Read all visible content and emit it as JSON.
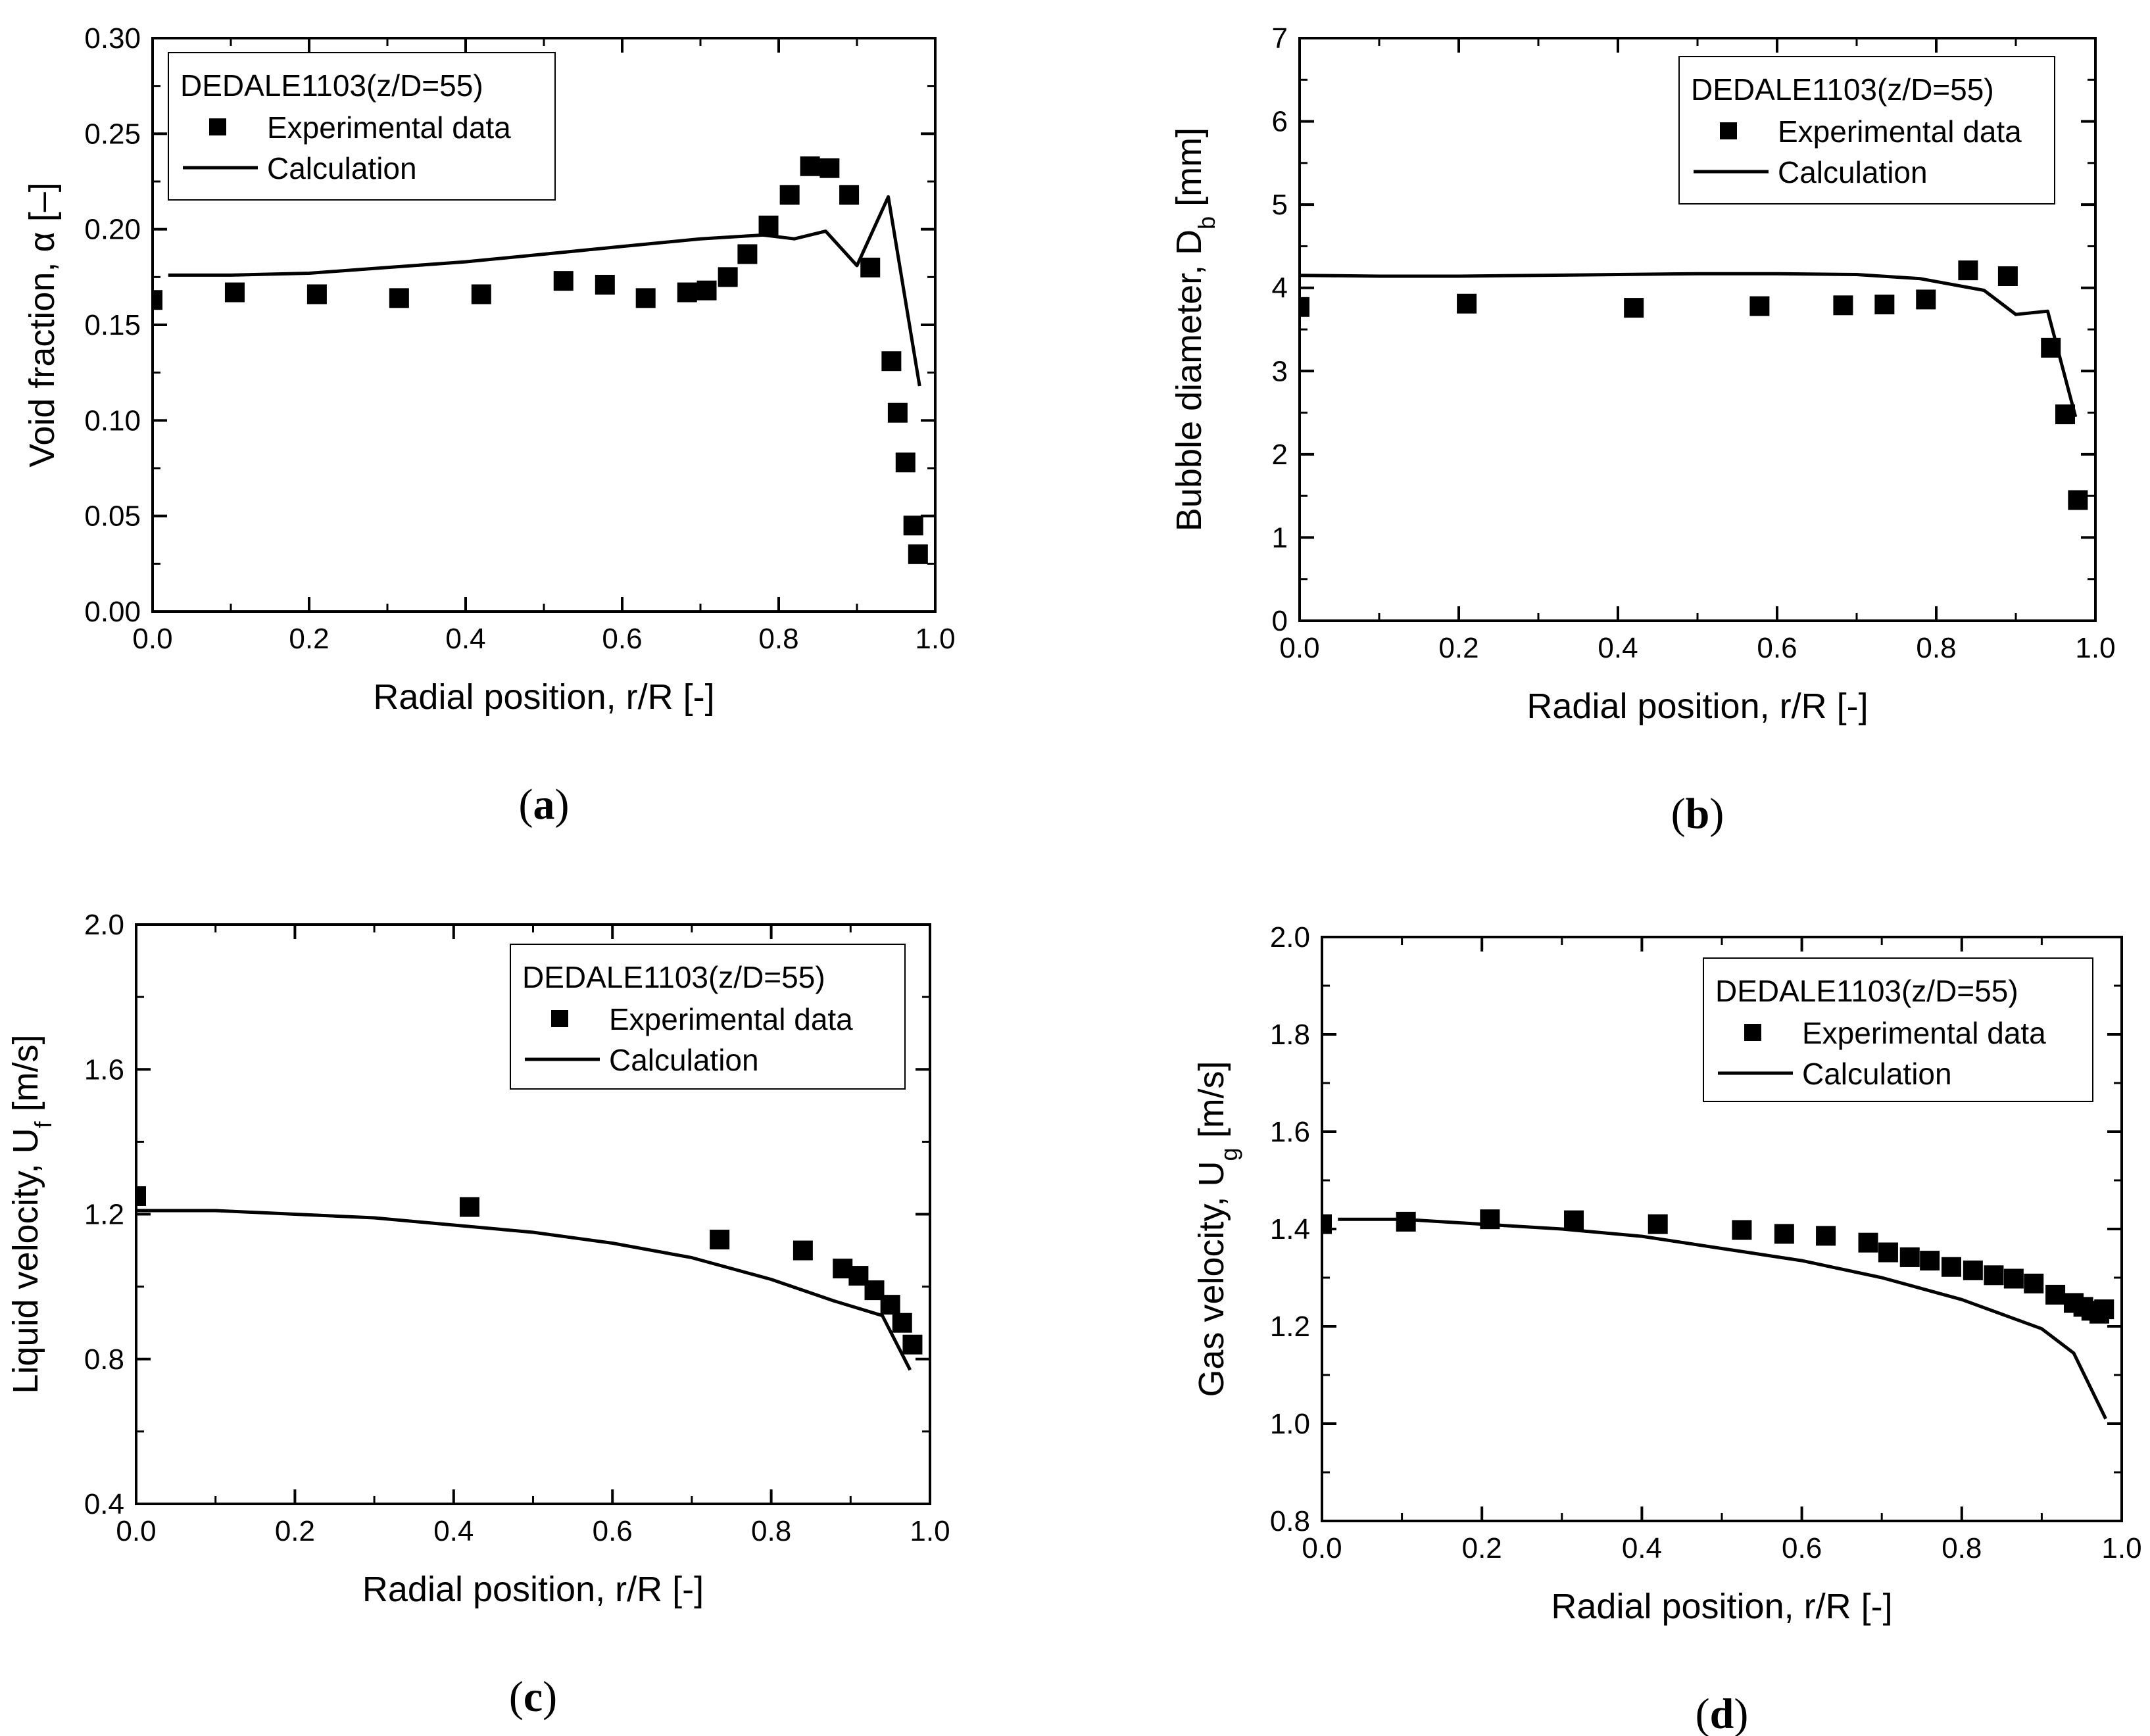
{
  "chart_data": [
    {
      "type": "scatter",
      "panel_label": "(a)",
      "panel_letter": "a",
      "ylabel": "Void fraction, α [–]",
      "xlabel": "Radial position, r/R [-]",
      "xlim": [
        0,
        1.0
      ],
      "ylim": [
        0,
        0.3
      ],
      "xticks": [
        "0.0",
        "0.2",
        "0.4",
        "0.6",
        "0.8",
        "1.0"
      ],
      "yticks": [
        "0.00",
        "0.05",
        "0.10",
        "0.15",
        "0.20",
        "0.25",
        "0.30"
      ],
      "legend_title": "DEDALE1103(z/D=55)",
      "legend_position": "top-left",
      "series": [
        {
          "name": "Experimental data",
          "kind": "markers",
          "x": [
            0.0,
            0.105,
            0.21,
            0.315,
            0.42,
            0.525,
            0.578,
            0.63,
            0.683,
            0.708,
            0.735,
            0.76,
            0.787,
            0.814,
            0.84,
            0.865,
            0.89,
            0.917,
            0.944,
            0.952,
            0.962,
            0.972,
            0.978
          ],
          "y": [
            0.163,
            0.167,
            0.166,
            0.164,
            0.166,
            0.173,
            0.171,
            0.164,
            0.167,
            0.168,
            0.175,
            0.187,
            0.202,
            0.218,
            0.233,
            0.232,
            0.218,
            0.18,
            0.131,
            0.104,
            0.078,
            0.045,
            0.03
          ]
        },
        {
          "name": "Calculation",
          "kind": "line",
          "x": [
            0.02,
            0.1,
            0.2,
            0.3,
            0.4,
            0.5,
            0.6,
            0.7,
            0.78,
            0.82,
            0.86,
            0.9,
            0.94,
            0.98
          ],
          "y": [
            0.176,
            0.176,
            0.177,
            0.18,
            0.183,
            0.187,
            0.191,
            0.195,
            0.197,
            0.195,
            0.199,
            0.181,
            0.217,
            0.118
          ]
        }
      ]
    },
    {
      "type": "scatter",
      "panel_label": "(b)",
      "panel_letter": "b",
      "ylabel": "Bubble diameter, D",
      "ylabel_sub": "b",
      "ylabel_tail": " [mm]",
      "xlabel": "Radial position, r/R [-]",
      "xlim": [
        0,
        1.0
      ],
      "ylim": [
        0,
        7
      ],
      "xticks": [
        "0.0",
        "0.2",
        "0.4",
        "0.6",
        "0.8",
        "1.0"
      ],
      "yticks": [
        "0",
        "1",
        "2",
        "3",
        "4",
        "5",
        "6",
        "7"
      ],
      "legend_title": "DEDALE1103(z/D=55)",
      "legend_position": "top-right",
      "series": [
        {
          "name": "Experimental data",
          "kind": "markers",
          "x": [
            0.0,
            0.21,
            0.42,
            0.578,
            0.683,
            0.735,
            0.787,
            0.84,
            0.89,
            0.944,
            0.962,
            0.978
          ],
          "y": [
            3.77,
            3.81,
            3.76,
            3.78,
            3.79,
            3.8,
            3.86,
            4.21,
            4.14,
            3.28,
            2.48,
            1.45
          ]
        },
        {
          "name": "Calculation",
          "kind": "line",
          "x": [
            0.0,
            0.1,
            0.2,
            0.3,
            0.4,
            0.5,
            0.6,
            0.7,
            0.78,
            0.86,
            0.9,
            0.94,
            0.975
          ],
          "y": [
            4.15,
            4.14,
            4.14,
            4.15,
            4.16,
            4.17,
            4.17,
            4.16,
            4.11,
            3.97,
            3.68,
            3.72,
            2.45
          ]
        }
      ]
    },
    {
      "type": "scatter",
      "panel_label": "(c)",
      "panel_letter": "c",
      "ylabel": "Liquid velocity, U",
      "ylabel_sub": "f",
      "ylabel_tail": " [m/s]",
      "xlabel": "Radial position, r/R [-]",
      "xlim": [
        0,
        1.0
      ],
      "ylim": [
        0.4,
        2.0
      ],
      "xticks": [
        "0.0",
        "0.2",
        "0.4",
        "0.6",
        "0.8",
        "1.0"
      ],
      "yticks": [
        "0.4",
        "0.8",
        "1.2",
        "1.6",
        "2.0"
      ],
      "legend_title": "DEDALE1103(z/D=55)",
      "legend_position": "top-right",
      "series": [
        {
          "name": "Experimental data",
          "kind": "markers",
          "x": [
            0.0,
            0.42,
            0.735,
            0.84,
            0.89,
            0.91,
            0.93,
            0.95,
            0.965,
            0.978
          ],
          "y": [
            1.25,
            1.22,
            1.13,
            1.1,
            1.05,
            1.03,
            0.99,
            0.95,
            0.9,
            0.84
          ]
        },
        {
          "name": "Calculation",
          "kind": "line",
          "x": [
            0.0,
            0.1,
            0.2,
            0.3,
            0.4,
            0.5,
            0.6,
            0.7,
            0.8,
            0.88,
            0.94,
            0.975
          ],
          "y": [
            1.21,
            1.21,
            1.2,
            1.19,
            1.17,
            1.15,
            1.12,
            1.08,
            1.02,
            0.96,
            0.92,
            0.77
          ]
        }
      ]
    },
    {
      "type": "scatter",
      "panel_label": "(d)",
      "panel_letter": "d",
      "ylabel": "Gas velocity, U",
      "ylabel_sub": "g",
      "ylabel_tail": " [m/s]",
      "xlabel": "Radial position, r/R [-]",
      "xlim": [
        0,
        1.0
      ],
      "ylim": [
        0.8,
        2.0
      ],
      "xticks": [
        "0.0",
        "0.2",
        "0.4",
        "0.6",
        "0.8",
        "1.0"
      ],
      "yticks": [
        "0.8",
        "1.0",
        "1.2",
        "1.4",
        "1.6",
        "1.8",
        "2.0"
      ],
      "legend_title": "DEDALE1103(z/D=55)",
      "legend_position": "top-right",
      "series": [
        {
          "name": "Experimental data",
          "kind": "markers",
          "x": [
            0.0,
            0.105,
            0.21,
            0.315,
            0.42,
            0.525,
            0.578,
            0.63,
            0.683,
            0.708,
            0.735,
            0.76,
            0.787,
            0.814,
            0.84,
            0.865,
            0.89,
            0.917,
            0.94,
            0.952,
            0.962,
            0.972,
            0.978
          ],
          "y": [
            1.41,
            1.415,
            1.42,
            1.418,
            1.41,
            1.398,
            1.39,
            1.386,
            1.372,
            1.352,
            1.342,
            1.335,
            1.322,
            1.315,
            1.305,
            1.298,
            1.288,
            1.265,
            1.248,
            1.24,
            1.232,
            1.226,
            1.235
          ]
        },
        {
          "name": "Calculation",
          "kind": "line",
          "x": [
            0.02,
            0.1,
            0.2,
            0.3,
            0.4,
            0.5,
            0.6,
            0.7,
            0.8,
            0.9,
            0.94,
            0.98
          ],
          "y": [
            1.42,
            1.42,
            1.41,
            1.4,
            1.385,
            1.36,
            1.335,
            1.3,
            1.255,
            1.195,
            1.145,
            1.01
          ]
        }
      ]
    }
  ]
}
